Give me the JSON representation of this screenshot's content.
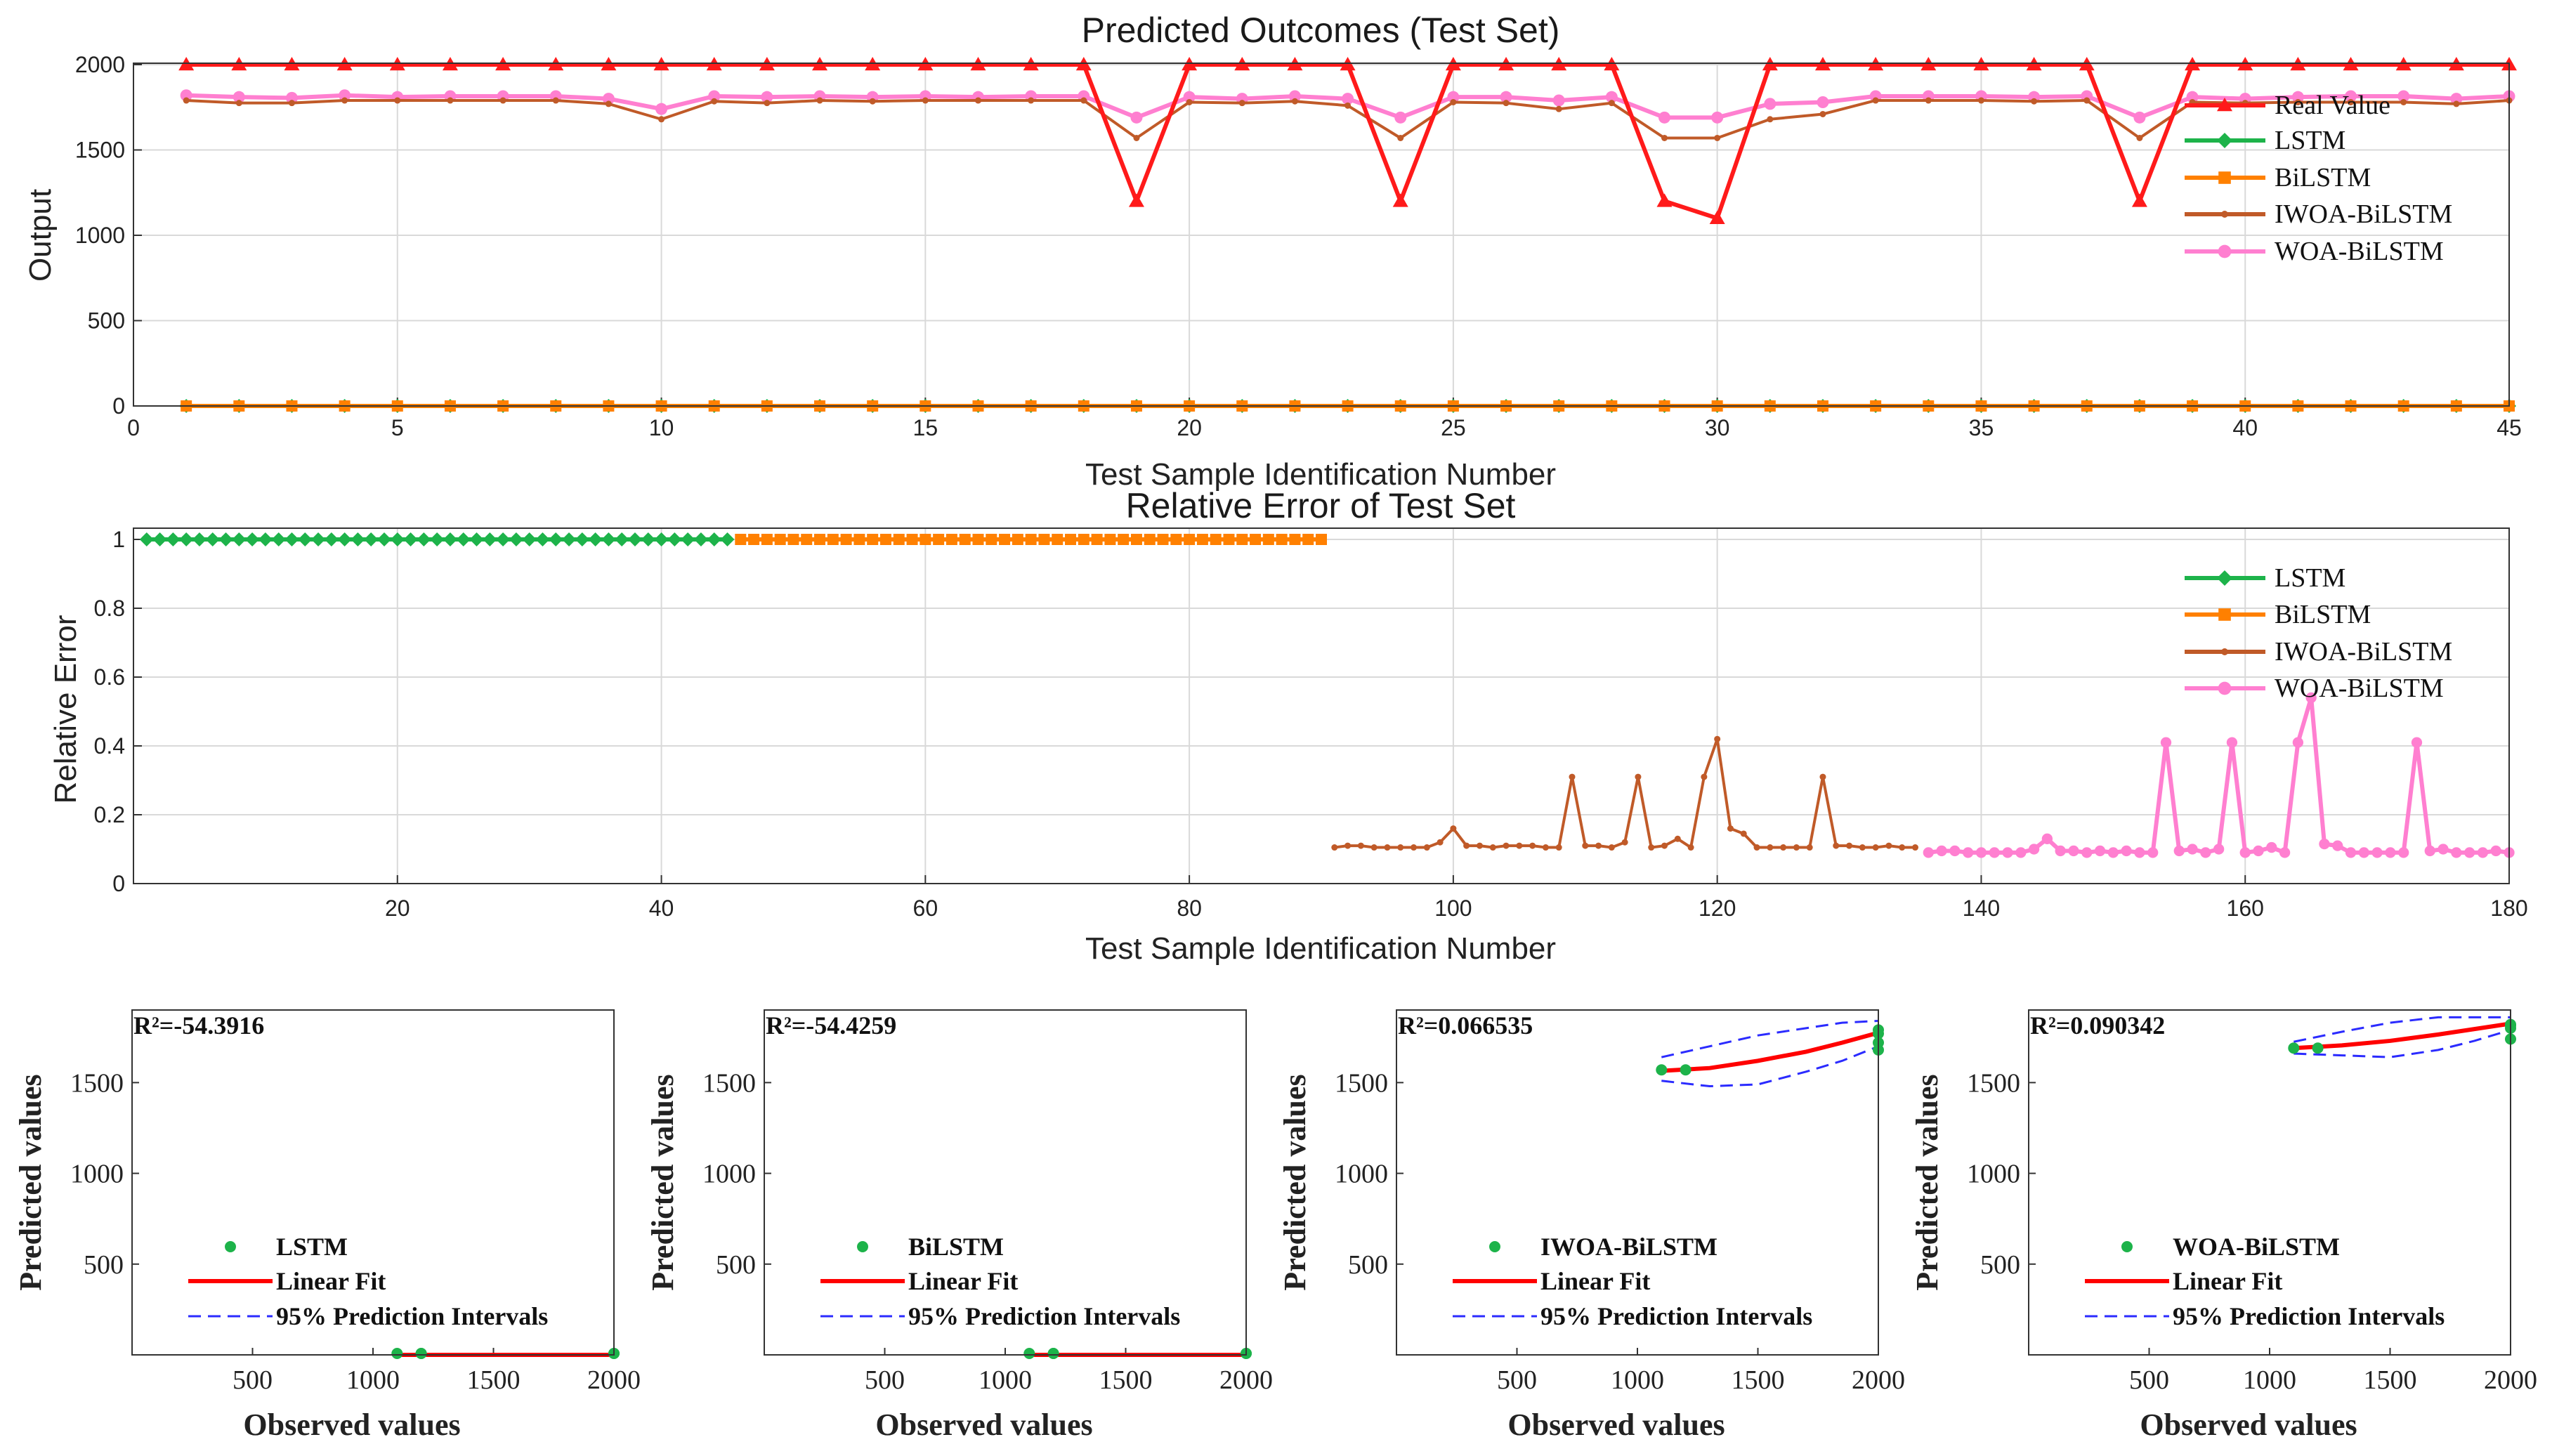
{
  "colors": {
    "real": "#ff1a1a",
    "lstm": "#1db34a",
    "bilstm": "#ff8000",
    "iwoa": "#c05a28",
    "woa": "#ff7fd0",
    "fit": "#ff0000",
    "interval": "#2b2bff",
    "grid": "#d9d9d9"
  },
  "chart_data": [
    {
      "id": "predicted",
      "type": "line",
      "title": "Predicted Outcomes (Test Set)",
      "xlabel": "Test Sample Identification Number",
      "ylabel": "Output",
      "xlim": [
        0,
        45
      ],
      "ylim": [
        0,
        2000
      ],
      "xticks": [
        0,
        5,
        10,
        15,
        20,
        25,
        30,
        35,
        40,
        45
      ],
      "yticks": [
        0,
        500,
        1000,
        1500,
        2000
      ],
      "grid": true,
      "legend_position": "top-right",
      "x": [
        1,
        2,
        3,
        4,
        5,
        6,
        7,
        8,
        9,
        10,
        11,
        12,
        13,
        14,
        15,
        16,
        17,
        18,
        19,
        20,
        21,
        22,
        23,
        24,
        25,
        26,
        27,
        28,
        29,
        30,
        31,
        32,
        33,
        34,
        35,
        36,
        37,
        38,
        39,
        40,
        41,
        42,
        43,
        44,
        45
      ],
      "series": [
        {
          "key": "real",
          "name": "Real Value",
          "marker": "triangle",
          "values": [
            2000,
            2000,
            2000,
            2000,
            2000,
            2000,
            2000,
            2000,
            2000,
            2000,
            2000,
            2000,
            2000,
            2000,
            2000,
            2000,
            2000,
            2000,
            1200,
            2000,
            2000,
            2000,
            2000,
            1200,
            2000,
            2000,
            2000,
            2000,
            1200,
            1100,
            2000,
            2000,
            2000,
            2000,
            2000,
            2000,
            2000,
            1200,
            2000,
            2000,
            2000,
            2000,
            2000,
            2000,
            2000
          ]
        },
        {
          "key": "lstm",
          "name": "LSTM",
          "marker": "diamond",
          "values": [
            0,
            0,
            0,
            0,
            0,
            0,
            0,
            0,
            0,
            0,
            0,
            0,
            0,
            0,
            0,
            0,
            0,
            0,
            0,
            0,
            0,
            0,
            0,
            0,
            0,
            0,
            0,
            0,
            0,
            0,
            0,
            0,
            0,
            0,
            0,
            0,
            0,
            0,
            0,
            0,
            0,
            0,
            0,
            0,
            0
          ]
        },
        {
          "key": "bilstm",
          "name": "BiLSTM",
          "marker": "square",
          "values": [
            0,
            0,
            0,
            0,
            0,
            0,
            0,
            0,
            0,
            0,
            0,
            0,
            0,
            0,
            0,
            0,
            0,
            0,
            0,
            0,
            0,
            0,
            0,
            0,
            0,
            0,
            0,
            0,
            0,
            0,
            0,
            0,
            0,
            0,
            0,
            0,
            0,
            0,
            0,
            0,
            0,
            0,
            0,
            0,
            0
          ]
        },
        {
          "key": "iwoa",
          "name": "IWOA-BiLSTM",
          "marker": "dot",
          "values": [
            1790,
            1775,
            1775,
            1790,
            1790,
            1790,
            1790,
            1790,
            1770,
            1680,
            1785,
            1775,
            1790,
            1785,
            1790,
            1790,
            1790,
            1790,
            1570,
            1780,
            1775,
            1785,
            1760,
            1570,
            1780,
            1775,
            1740,
            1775,
            1570,
            1570,
            1680,
            1710,
            1790,
            1790,
            1790,
            1785,
            1790,
            1570,
            1780,
            1775,
            1780,
            1780,
            1780,
            1770,
            1790
          ]
        },
        {
          "key": "woa",
          "name": "WOA-BiLSTM",
          "marker": "circle",
          "values": [
            1820,
            1810,
            1805,
            1820,
            1810,
            1815,
            1815,
            1815,
            1800,
            1740,
            1815,
            1810,
            1815,
            1810,
            1815,
            1810,
            1815,
            1815,
            1690,
            1810,
            1800,
            1815,
            1800,
            1690,
            1810,
            1810,
            1790,
            1810,
            1690,
            1690,
            1770,
            1780,
            1815,
            1815,
            1815,
            1810,
            1815,
            1690,
            1810,
            1800,
            1810,
            1815,
            1815,
            1800,
            1815
          ]
        }
      ]
    },
    {
      "id": "relerror",
      "type": "line",
      "title": "Relative Error of Test Set",
      "xlabel": "Test Sample Identification Number",
      "ylabel": "Relative Error",
      "xlim": [
        0,
        180
      ],
      "ylim": [
        0,
        1.05
      ],
      "xticks": [
        20,
        40,
        60,
        80,
        100,
        120,
        140,
        160,
        180
      ],
      "ytick_labels": [
        "0",
        "0.2",
        "0.4",
        "0.6",
        "0.8",
        "1"
      ],
      "yticks": [
        0,
        0.2,
        0.4,
        0.6,
        0.8,
        1
      ],
      "grid": true,
      "legend_position": "top-right",
      "series": [
        {
          "key": "lstm",
          "name": "LSTM",
          "marker": "diamond",
          "x_start": 1,
          "values": [
            1,
            1,
            1,
            1,
            1,
            1,
            1,
            1,
            1,
            1,
            1,
            1,
            1,
            1,
            1,
            1,
            1,
            1,
            1,
            1,
            1,
            1,
            1,
            1,
            1,
            1,
            1,
            1,
            1,
            1,
            1,
            1,
            1,
            1,
            1,
            1,
            1,
            1,
            1,
            1,
            1,
            1,
            1,
            1,
            1
          ]
        },
        {
          "key": "bilstm",
          "name": "BiLSTM",
          "marker": "square",
          "x_start": 46,
          "values": [
            1,
            1,
            1,
            1,
            1,
            1,
            1,
            1,
            1,
            1,
            1,
            1,
            1,
            1,
            1,
            1,
            1,
            1,
            1,
            1,
            1,
            1,
            1,
            1,
            1,
            1,
            1,
            1,
            1,
            1,
            1,
            1,
            1,
            1,
            1,
            1,
            1,
            1,
            1,
            1,
            1,
            1,
            1,
            1,
            1
          ]
        },
        {
          "key": "iwoa",
          "name": "IWOA-BiLSTM",
          "marker": "dot",
          "x_start": 91,
          "values": [
            0.105,
            0.11,
            0.11,
            0.105,
            0.105,
            0.105,
            0.105,
            0.105,
            0.12,
            0.16,
            0.11,
            0.11,
            0.105,
            0.11,
            0.11,
            0.11,
            0.105,
            0.105,
            0.31,
            0.11,
            0.11,
            0.105,
            0.12,
            0.31,
            0.105,
            0.11,
            0.13,
            0.105,
            0.31,
            0.42,
            0.16,
            0.145,
            0.105,
            0.105,
            0.105,
            0.105,
            0.105,
            0.31,
            0.11,
            0.11,
            0.105,
            0.105,
            0.11,
            0.105,
            0.105
          ]
        },
        {
          "key": "woa",
          "name": "WOA-BiLSTM",
          "marker": "circle",
          "x_start": 136,
          "values": [
            0.09,
            0.095,
            0.095,
            0.09,
            0.09,
            0.09,
            0.09,
            0.09,
            0.1,
            0.13,
            0.095,
            0.095,
            0.09,
            0.095,
            0.09,
            0.095,
            0.09,
            0.09,
            0.41,
            0.095,
            0.1,
            0.09,
            0.1,
            0.41,
            0.09,
            0.095,
            0.105,
            0.09,
            0.41,
            0.54,
            0.115,
            0.11,
            0.09,
            0.09,
            0.09,
            0.09,
            0.09,
            0.41,
            0.095,
            0.1,
            0.09,
            0.09,
            0.09,
            0.095,
            0.09
          ]
        }
      ]
    },
    {
      "id": "reg-lstm",
      "type": "scatter",
      "r2_text": "R²=-54.3916",
      "xlabel": "Observed values",
      "ylabel": "Predicted values",
      "xlim": [
        0,
        2000
      ],
      "ylim": [
        0,
        1900
      ],
      "xticks": [
        500,
        1000,
        1500,
        2000
      ],
      "yticks": [
        500,
        1000,
        1500
      ],
      "legend": [
        "LSTM",
        "Linear Fit",
        "95% Prediction Intervals"
      ],
      "legend_position": "bottom-right",
      "points": [
        [
          1100,
          0
        ],
        [
          1200,
          0
        ],
        [
          1200,
          0
        ],
        [
          2000,
          0
        ],
        [
          2000,
          0
        ]
      ],
      "fit": [
        [
          1100,
          0
        ],
        [
          2000,
          0
        ]
      ],
      "interval_upper": [
        [
          1100,
          5
        ],
        [
          2000,
          5
        ]
      ],
      "interval_lower": [
        [
          1100,
          -5
        ],
        [
          2000,
          -5
        ]
      ]
    },
    {
      "id": "reg-bilstm",
      "type": "scatter",
      "r2_text": "R²=-54.4259",
      "xlabel": "Observed values",
      "ylabel": "Predicted values",
      "xlim": [
        0,
        2000
      ],
      "ylim": [
        0,
        1900
      ],
      "xticks": [
        500,
        1000,
        1500,
        2000
      ],
      "yticks": [
        500,
        1000,
        1500
      ],
      "legend": [
        "BiLSTM",
        "Linear Fit",
        "95% Prediction Intervals"
      ],
      "legend_position": "bottom-right",
      "points": [
        [
          1100,
          0
        ],
        [
          1200,
          0
        ],
        [
          1200,
          0
        ],
        [
          2000,
          0
        ],
        [
          2000,
          0
        ]
      ],
      "fit": [
        [
          1100,
          0
        ],
        [
          2000,
          0
        ]
      ],
      "interval_upper": [
        [
          1100,
          5
        ],
        [
          2000,
          5
        ]
      ],
      "interval_lower": [
        [
          1100,
          -5
        ],
        [
          2000,
          -5
        ]
      ]
    },
    {
      "id": "reg-iwoa",
      "type": "scatter",
      "r2_text": "R²=0.066535",
      "xlabel": "Observed values",
      "ylabel": "Predicted values",
      "xlim": [
        0,
        2000
      ],
      "ylim": [
        0,
        1900
      ],
      "xticks": [
        500,
        1000,
        1500,
        2000
      ],
      "yticks": [
        500,
        1000,
        1500
      ],
      "legend": [
        "IWOA-BiLSTM",
        "Linear Fit",
        "95% Prediction Intervals"
      ],
      "legend_position": "bottom-right",
      "points": [
        [
          1100,
          1570
        ],
        [
          1200,
          1570
        ],
        [
          2000,
          1680
        ],
        [
          2000,
          1720
        ],
        [
          2000,
          1770
        ],
        [
          2000,
          1790
        ]
      ],
      "fit": [
        [
          1100,
          1565
        ],
        [
          1300,
          1580
        ],
        [
          1500,
          1620
        ],
        [
          1700,
          1670
        ],
        [
          1850,
          1720
        ],
        [
          2000,
          1775
        ]
      ],
      "interval_upper": [
        [
          1100,
          1640
        ],
        [
          1300,
          1700
        ],
        [
          1500,
          1760
        ],
        [
          1700,
          1800
        ],
        [
          1850,
          1830
        ],
        [
          2000,
          1840
        ]
      ],
      "interval_lower": [
        [
          1100,
          1510
        ],
        [
          1300,
          1480
        ],
        [
          1500,
          1490
        ],
        [
          1700,
          1560
        ],
        [
          1850,
          1620
        ],
        [
          2000,
          1700
        ]
      ]
    },
    {
      "id": "reg-woa",
      "type": "scatter",
      "r2_text": "R²=0.090342",
      "xlabel": "Observed values",
      "ylabel": "Predicted values",
      "xlim": [
        0,
        2000
      ],
      "ylim": [
        0,
        1900
      ],
      "xticks": [
        500,
        1000,
        1500,
        2000
      ],
      "yticks": [
        500,
        1000,
        1500
      ],
      "legend": [
        "WOA-BiLSTM",
        "Linear Fit",
        "95% Prediction Intervals"
      ],
      "legend_position": "bottom-right",
      "points": [
        [
          1100,
          1690
        ],
        [
          1200,
          1690
        ],
        [
          2000,
          1740
        ],
        [
          2000,
          1800
        ],
        [
          2000,
          1815
        ],
        [
          2000,
          1820
        ]
      ],
      "fit": [
        [
          1100,
          1690
        ],
        [
          1300,
          1705
        ],
        [
          1500,
          1730
        ],
        [
          1700,
          1765
        ],
        [
          1850,
          1795
        ],
        [
          2000,
          1825
        ]
      ],
      "interval_upper": [
        [
          1100,
          1725
        ],
        [
          1300,
          1780
        ],
        [
          1500,
          1830
        ],
        [
          1700,
          1860
        ],
        [
          1850,
          1860
        ],
        [
          2000,
          1860
        ]
      ],
      "interval_lower": [
        [
          1100,
          1660
        ],
        [
          1300,
          1650
        ],
        [
          1500,
          1640
        ],
        [
          1700,
          1680
        ],
        [
          1850,
          1730
        ],
        [
          2000,
          1790
        ]
      ]
    }
  ]
}
